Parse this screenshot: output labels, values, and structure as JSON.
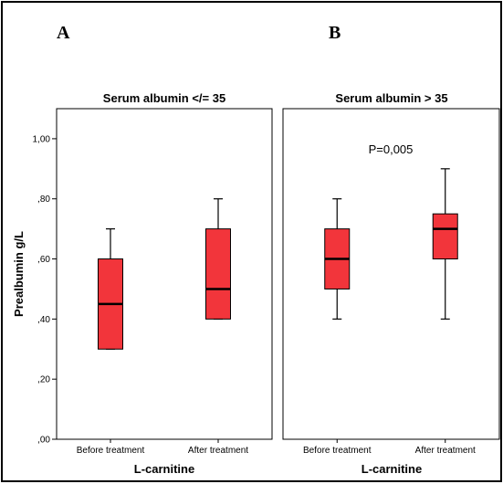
{
  "panel_letters": [
    "A",
    "B"
  ],
  "ylabel": "Prealbumin g/L",
  "chart_data": [
    {
      "type": "boxplot",
      "panel": "A",
      "title": "Serum albumin </= 35",
      "xlabel": "L-carnitine",
      "ylabel": "Prealbumin g/L",
      "categories": [
        "Before treatment",
        "After treatment"
      ],
      "ylim": [
        0,
        1.1
      ],
      "yticks": [
        0,
        0.2,
        0.4,
        0.6,
        0.8,
        1.0
      ],
      "ytick_labels": [
        ",00",
        ",20",
        ",40",
        ",60",
        ",80",
        "1,00"
      ],
      "boxes": [
        {
          "category": "Before treatment",
          "whisker_low": 0.3,
          "q1": 0.3,
          "median": 0.45,
          "q3": 0.6,
          "whisker_high": 0.7
        },
        {
          "category": "After treatment",
          "whisker_low": 0.4,
          "q1": 0.4,
          "median": 0.5,
          "q3": 0.7,
          "whisker_high": 0.8
        }
      ],
      "annotation": "",
      "box_color": "#f2353b"
    },
    {
      "type": "boxplot",
      "panel": "B",
      "title": "Serum albumin > 35",
      "xlabel": "L-carnitine",
      "categories": [
        "Before treatment",
        "After treatment"
      ],
      "ylim": [
        0,
        1.1
      ],
      "boxes": [
        {
          "category": "Before treatment",
          "whisker_low": 0.4,
          "q1": 0.5,
          "median": 0.6,
          "q3": 0.7,
          "whisker_high": 0.8
        },
        {
          "category": "After treatment",
          "whisker_low": 0.4,
          "q1": 0.6,
          "median": 0.7,
          "q3": 0.75,
          "whisker_high": 0.9
        }
      ],
      "annotation": "P=0,005",
      "box_color": "#f2353b"
    }
  ]
}
